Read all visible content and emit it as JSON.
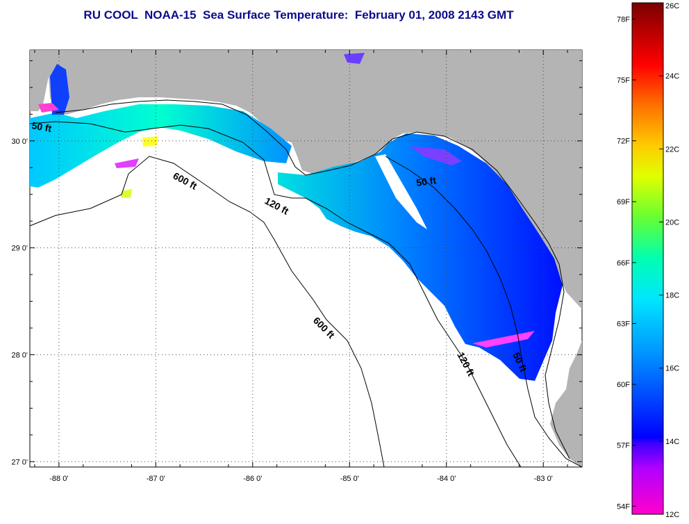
{
  "title": "RU COOL  NOAA-15  Sea Surface Temperature:  February 01, 2008 2143 GMT",
  "map": {
    "lon_range": [
      -88.3,
      -82.6
    ],
    "lat_range": [
      26.95,
      30.85
    ],
    "lat_ticks": [
      {
        "value": 30,
        "label": "30 0'"
      },
      {
        "value": 29,
        "label": "29 0'"
      },
      {
        "value": 28,
        "label": "28 0'"
      },
      {
        "value": 27,
        "label": "27 0'"
      }
    ],
    "lon_ticks": [
      {
        "value": -88,
        "label": "-88 0'"
      },
      {
        "value": -87,
        "label": "-87 0'"
      },
      {
        "value": -86,
        "label": "-86 0'"
      },
      {
        "value": -85,
        "label": "-85 0'"
      },
      {
        "value": -84,
        "label": "-84 0'"
      },
      {
        "value": -83,
        "label": "-83 0'"
      }
    ],
    "grid": "dotted",
    "land_color": "#b4b4b4",
    "no_data_color": "#ffffff"
  },
  "contour_labels": [
    {
      "text": "50 ft"
    },
    {
      "text": "600 ft"
    },
    {
      "text": "120 ft"
    },
    {
      "text": "50 ft"
    },
    {
      "text": "600 ft"
    },
    {
      "text": "120 ft"
    },
    {
      "text": "50 ft"
    }
  ],
  "colorbar": {
    "min_c": 12,
    "max_c": 26,
    "celsius_labels": [
      "26C",
      "24C",
      "22C",
      "20C",
      "18C",
      "16C",
      "14C",
      "12C"
    ],
    "fahrenheit_labels": [
      "78F",
      "75F",
      "72F",
      "69F",
      "66F",
      "63F",
      "60F",
      "57F",
      "54F"
    ],
    "colors": [
      "#ff00cc",
      "#7a00ff",
      "#0000ff",
      "#0077ff",
      "#00ccff",
      "#00ffcc",
      "#66ff33",
      "#ffff00",
      "#ff9900",
      "#ff0000",
      "#800000"
    ]
  }
}
